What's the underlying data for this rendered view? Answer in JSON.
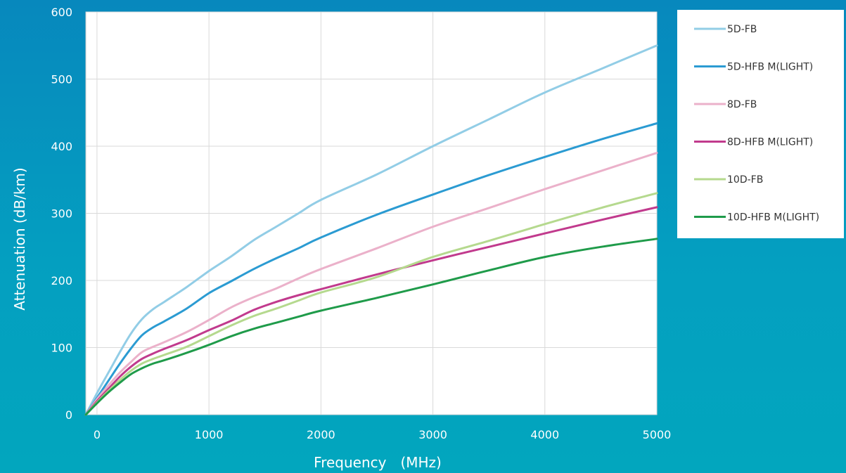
{
  "chart_data": {
    "type": "line",
    "title": "",
    "xlabel": "Frequency　(MHz)",
    "ylabel": "Attenuation (dB/km)",
    "xlim": [
      -100,
      5000
    ],
    "ylim": [
      0,
      600
    ],
    "xticks": [
      0,
      1000,
      2000,
      3000,
      4000,
      5000
    ],
    "yticks": [
      0,
      100,
      200,
      300,
      400,
      500,
      600
    ],
    "grid": true,
    "legend_position": "right",
    "series": [
      {
        "name": "5D-FB",
        "color": "#92cde6",
        "points": [
          [
            -100,
            0
          ],
          [
            0,
            32
          ],
          [
            100,
            62
          ],
          [
            200,
            92
          ],
          [
            300,
            120
          ],
          [
            400,
            142
          ],
          [
            500,
            157
          ],
          [
            600,
            168
          ],
          [
            800,
            190
          ],
          [
            1000,
            214
          ],
          [
            1200,
            236
          ],
          [
            1400,
            260
          ],
          [
            1600,
            280
          ],
          [
            1800,
            300
          ],
          [
            2000,
            320
          ],
          [
            2500,
            358
          ],
          [
            3000,
            400
          ],
          [
            3500,
            440
          ],
          [
            4000,
            480
          ],
          [
            4500,
            515
          ],
          [
            5000,
            550
          ]
        ]
      },
      {
        "name": "5D-HFB M(LIGHT)",
        "color": "#2b9bd2",
        "points": [
          [
            -100,
            0
          ],
          [
            0,
            25
          ],
          [
            100,
            50
          ],
          [
            200,
            75
          ],
          [
            300,
            98
          ],
          [
            400,
            118
          ],
          [
            500,
            130
          ],
          [
            600,
            139
          ],
          [
            800,
            158
          ],
          [
            1000,
            181
          ],
          [
            1200,
            199
          ],
          [
            1400,
            217
          ],
          [
            1600,
            233
          ],
          [
            1800,
            248
          ],
          [
            2000,
            264
          ],
          [
            2500,
            298
          ],
          [
            3000,
            328
          ],
          [
            3500,
            357
          ],
          [
            4000,
            384
          ],
          [
            4500,
            410
          ],
          [
            5000,
            434
          ]
        ]
      },
      {
        "name": "8D-FB",
        "color": "#ebb1ca",
        "points": [
          [
            -100,
            0
          ],
          [
            0,
            23
          ],
          [
            100,
            43
          ],
          [
            200,
            62
          ],
          [
            300,
            78
          ],
          [
            400,
            93
          ],
          [
            500,
            101
          ],
          [
            600,
            108
          ],
          [
            800,
            123
          ],
          [
            1000,
            141
          ],
          [
            1200,
            160
          ],
          [
            1400,
            175
          ],
          [
            1600,
            188
          ],
          [
            1800,
            203
          ],
          [
            2000,
            217
          ],
          [
            2500,
            248
          ],
          [
            3000,
            280
          ],
          [
            3500,
            308
          ],
          [
            4000,
            336
          ],
          [
            4500,
            363
          ],
          [
            5000,
            390
          ]
        ]
      },
      {
        "name": "8D-HFB M(LIGHT)",
        "color": "#c13a8d",
        "points": [
          [
            -100,
            0
          ],
          [
            0,
            20
          ],
          [
            100,
            38
          ],
          [
            200,
            56
          ],
          [
            300,
            71
          ],
          [
            400,
            83
          ],
          [
            500,
            91
          ],
          [
            600,
            98
          ],
          [
            800,
            111
          ],
          [
            1000,
            126
          ],
          [
            1200,
            140
          ],
          [
            1400,
            156
          ],
          [
            1600,
            168
          ],
          [
            1800,
            178
          ],
          [
            2000,
            187
          ],
          [
            2500,
            209
          ],
          [
            3000,
            230
          ],
          [
            3500,
            250
          ],
          [
            4000,
            270
          ],
          [
            4500,
            290
          ],
          [
            5000,
            309
          ]
        ]
      },
      {
        "name": "10D-FB",
        "color": "#b5d98e",
        "points": [
          [
            -100,
            0
          ],
          [
            0,
            18
          ],
          [
            100,
            35
          ],
          [
            200,
            51
          ],
          [
            300,
            65
          ],
          [
            400,
            76
          ],
          [
            500,
            83
          ],
          [
            600,
            89
          ],
          [
            800,
            101
          ],
          [
            1000,
            117
          ],
          [
            1200,
            133
          ],
          [
            1400,
            147
          ],
          [
            1600,
            158
          ],
          [
            1800,
            170
          ],
          [
            2000,
            182
          ],
          [
            2500,
            205
          ],
          [
            3000,
            235
          ],
          [
            3500,
            259
          ],
          [
            4000,
            284
          ],
          [
            4500,
            308
          ],
          [
            5000,
            330
          ]
        ]
      },
      {
        "name": "10D-HFB M(LIGHT)",
        "color": "#1f9b4a",
        "points": [
          [
            -100,
            0
          ],
          [
            0,
            17
          ],
          [
            100,
            33
          ],
          [
            200,
            47
          ],
          [
            300,
            60
          ],
          [
            400,
            69
          ],
          [
            500,
            76
          ],
          [
            600,
            81
          ],
          [
            800,
            92
          ],
          [
            1000,
            104
          ],
          [
            1200,
            117
          ],
          [
            1400,
            128
          ],
          [
            1600,
            137
          ],
          [
            1800,
            146
          ],
          [
            2000,
            155
          ],
          [
            2500,
            174
          ],
          [
            3000,
            194
          ],
          [
            3500,
            215
          ],
          [
            4000,
            235
          ],
          [
            4500,
            250
          ],
          [
            5000,
            262
          ]
        ]
      }
    ]
  }
}
